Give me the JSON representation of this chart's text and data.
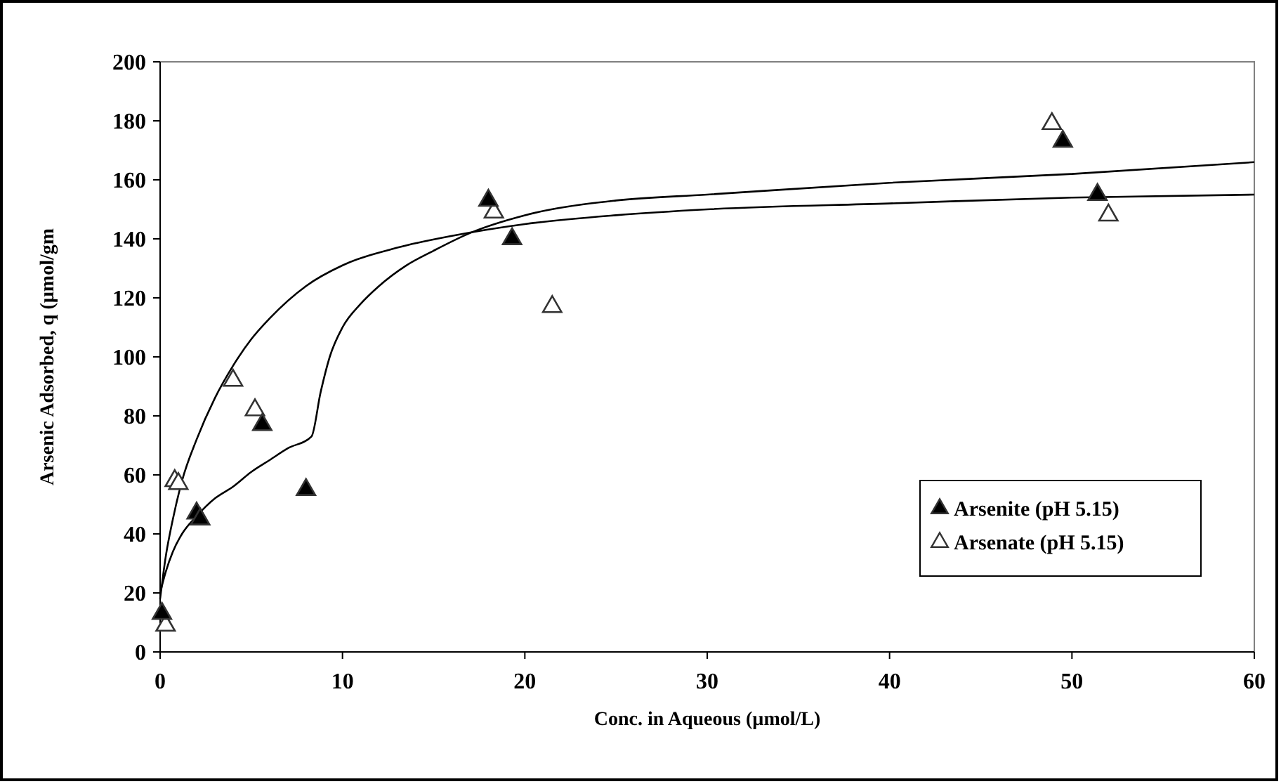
{
  "chart_data": {
    "type": "scatter",
    "xlabel": "Conc. in Aqueous (µmol/L)",
    "ylabel": "Arsenic Adsorbed, q (µmol/gm",
    "xlim": [
      0,
      60
    ],
    "ylim": [
      0,
      200
    ],
    "xticks": [
      0,
      10,
      20,
      30,
      40,
      50,
      60
    ],
    "yticks": [
      0,
      20,
      40,
      60,
      80,
      100,
      120,
      140,
      160,
      180,
      200
    ],
    "grid": false,
    "legend": "bottom right",
    "marker": "triangle",
    "series": [
      {
        "name": "Arsenite (pH 5.15)",
        "color": "#000000",
        "x": [
          0.1,
          2,
          2.2,
          5.6,
          8,
          18,
          19.3,
          49.5,
          51.4
        ],
        "values": [
          13,
          47,
          45,
          77,
          55,
          153,
          140,
          173,
          155
        ]
      },
      {
        "name": "Arsenate (pH 5.15)",
        "color": "#ffffff",
        "x": [
          0.3,
          0.8,
          1,
          4,
          5.2,
          18.3,
          21.5,
          48.9,
          52
        ],
        "values": [
          9,
          58,
          57,
          92,
          82,
          149,
          117,
          179,
          148
        ]
      },
      {
        "type": "line",
        "color": "#000000",
        "marker": "none",
        "x": [
          0,
          0.3,
          0.7,
          1.2,
          2,
          3,
          4,
          5,
          6,
          8,
          10,
          13,
          16,
          20,
          25,
          30,
          40,
          50,
          60
        ],
        "values": [
          18,
          32,
          45,
          58,
          72,
          86,
          97,
          106,
          113,
          124,
          131,
          137,
          141,
          145,
          148,
          150,
          152,
          154,
          155
        ]
      },
      {
        "type": "line",
        "color": "#000000",
        "marker": "none",
        "x": [
          0,
          0.3,
          0.7,
          1.2,
          2,
          3,
          4,
          5,
          6,
          7,
          8.3,
          8.8,
          9.3,
          10,
          11,
          12,
          13.5,
          15,
          17,
          20,
          25,
          30,
          40,
          50,
          60
        ],
        "values": [
          20,
          27,
          34,
          40,
          46,
          52,
          56,
          61,
          65,
          69,
          73,
          88,
          100,
          110,
          118,
          124,
          131,
          136,
          142,
          148,
          153,
          155,
          159,
          162,
          166
        ]
      }
    ]
  }
}
